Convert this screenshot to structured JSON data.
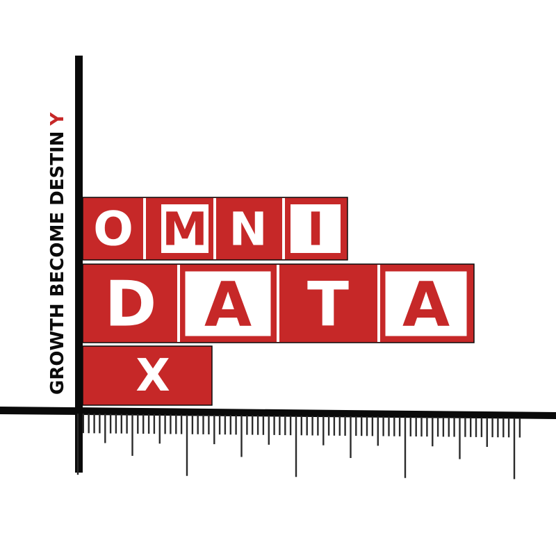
{
  "logo": {
    "row1": [
      "O",
      "M",
      "N",
      "I"
    ],
    "row2": [
      "D",
      "A",
      "T",
      "A"
    ],
    "row3": [
      "X"
    ],
    "tagline_main": "GROWTH BECOME DESTIN",
    "tagline_accent": "Y"
  },
  "colors": {
    "brand_red": "#c62828",
    "ink": "#0a0a0a",
    "white": "#ffffff"
  },
  "icons": [
    "ruler-axis-icon"
  ]
}
